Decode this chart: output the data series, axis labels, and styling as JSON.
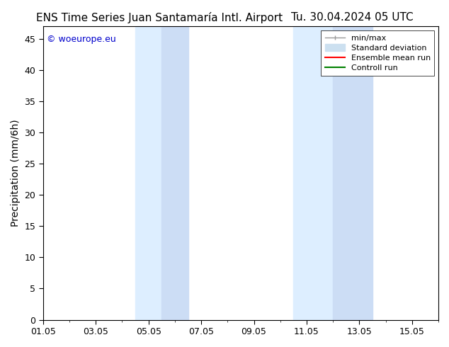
{
  "title_left": "ENS Time Series Juan Santamaría Intl. Airport",
  "title_right": "Tu. 30.04.2024 05 UTC",
  "ylabel": "Precipitation (mm/6h)",
  "copyright_text": "© woeurope.eu",
  "copyright_color": "#0000cc",
  "background_color": "#ffffff",
  "plot_bg_color": "#ffffff",
  "ylim": [
    0,
    47
  ],
  "yticks": [
    0,
    5,
    10,
    15,
    20,
    25,
    30,
    35,
    40,
    45
  ],
  "xstart": "2024-05-01",
  "xend": "2024-05-16",
  "xtick_labels": [
    "01.05",
    "03.05",
    "05.05",
    "07.05",
    "09.05",
    "11.05",
    "13.05",
    "15.05"
  ],
  "xtick_positions_days": [
    1,
    3,
    5,
    7,
    9,
    11,
    13,
    15
  ],
  "shade_bands": [
    {
      "xstart_day": 4.5,
      "xend_day": 6.5
    },
    {
      "xstart_day": 10.5,
      "xend_day": 13.5
    }
  ],
  "shade_color": "#ddeeff",
  "shade_color2": "#ccddf5",
  "legend_entries": [
    {
      "label": "min/max",
      "color": "#aaaaaa",
      "lw": 1,
      "style": "|-|"
    },
    {
      "label": "Standard deviation",
      "color": "#ccddee",
      "lw": 6,
      "style": "solid"
    },
    {
      "label": "Ensemble mean run",
      "color": "#ff0000",
      "lw": 1.5,
      "style": "solid"
    },
    {
      "label": "Controll run",
      "color": "#008000",
      "lw": 1.5,
      "style": "solid"
    }
  ],
  "font_family": "DejaVu Sans",
  "tick_font_size": 9,
  "label_font_size": 10,
  "title_font_size": 11
}
